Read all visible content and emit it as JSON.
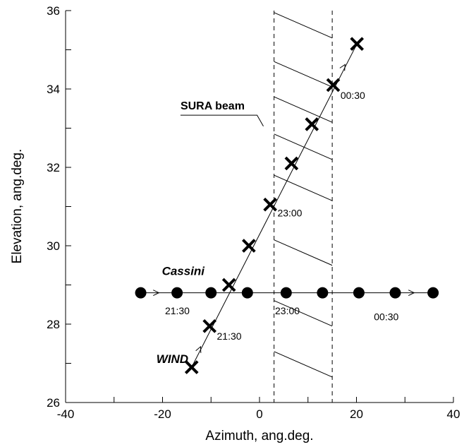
{
  "chart_data": {
    "type": "scatter",
    "xlabel": "Azimuth,  ang.deg.",
    "ylabel": "Elevation, ang.deg.",
    "xlim": [
      -40,
      40
    ],
    "ylim": [
      26,
      36
    ],
    "x_ticks": [
      -40,
      -20,
      0,
      20,
      40
    ],
    "x_tick_labels": [
      "-40",
      "-20",
      "0",
      "20",
      "40"
    ],
    "y_ticks": [
      26,
      28,
      30,
      32,
      34,
      36
    ],
    "y_tick_labels": [
      "26",
      "28",
      "30",
      "32",
      "34",
      "36"
    ],
    "grid": false,
    "series": [
      {
        "name": "WIND",
        "marker": "x",
        "x": [
          -14.0,
          -10.3,
          -6.3,
          -2.2,
          2.2,
          6.6,
          10.8,
          15.2,
          20.1
        ],
        "y": [
          26.9,
          27.95,
          29.0,
          30.0,
          31.05,
          32.1,
          33.1,
          34.1,
          35.15
        ]
      },
      {
        "name": "Cassini",
        "marker": "circle",
        "x": [
          -24.5,
          -17.0,
          -10.0,
          -2.5,
          5.5,
          13.0,
          20.5,
          28.0,
          35.8
        ],
        "y": [
          28.8,
          28.8,
          28.8,
          28.8,
          28.8,
          28.8,
          28.8,
          28.8,
          28.8
        ]
      }
    ],
    "sura_beam": {
      "label": "SURA beam",
      "x_min": 3,
      "x_max": 15
    },
    "annotations": [
      {
        "id": "wind-2130",
        "text": "21:30",
        "x": -8.8,
        "y": 27.6
      },
      {
        "id": "wind-2300",
        "text": "23:00",
        "x": 3.7,
        "y": 30.75
      },
      {
        "id": "wind-0030",
        "text": "00:30",
        "x": 16.7,
        "y": 33.75
      },
      {
        "id": "cassini-2130",
        "text": "21:30",
        "x": -19.5,
        "y": 28.25
      },
      {
        "id": "cassini-2300",
        "text": "23:00",
        "x": 3.2,
        "y": 28.25
      },
      {
        "id": "cassini-0030",
        "text": "00:30",
        "x": 23.6,
        "y": 28.1
      }
    ]
  }
}
